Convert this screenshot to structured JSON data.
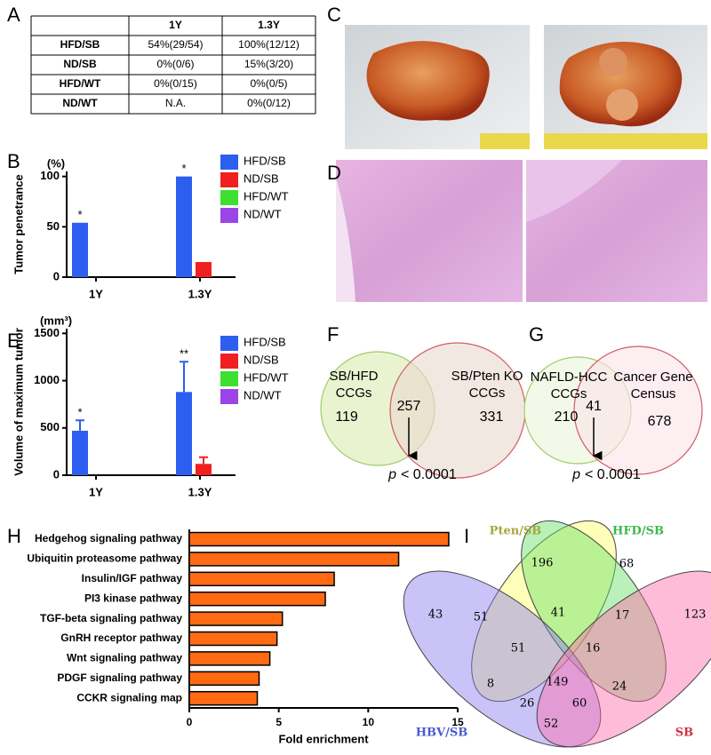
{
  "panel_labels": [
    "A",
    "B",
    "C",
    "D",
    "E",
    "F",
    "G",
    "H",
    "I"
  ],
  "table": {
    "header": [
      "1Y",
      "1.3Y"
    ],
    "rows": [
      [
        "HFD/SB",
        "54%(29/54)",
        "100%(12/12)"
      ],
      [
        "ND/SB",
        "0%(0/6)",
        "15%(3/20)"
      ],
      [
        "HFD/WT",
        "0%(0/15)",
        "0%(0/5)"
      ],
      [
        "ND/WT",
        "N.A.",
        "0%(0/12)"
      ]
    ]
  },
  "chart_data": [
    {
      "type": "bar",
      "ylabel": "Tumor penetrance",
      "yunit": "(%)",
      "categories": [
        "1Y",
        "1.3Y"
      ],
      "series": [
        {
          "name": "HFD/SB",
          "color": "#2c5ef0",
          "values": [
            54,
            100
          ],
          "annotations": [
            "*",
            "*"
          ]
        },
        {
          "name": "ND/SB",
          "color": "#f02020",
          "values": [
            0,
            15
          ]
        },
        {
          "name": "HFD/WT",
          "color": "#3de02e",
          "values": [
            0,
            0
          ]
        },
        {
          "name": "ND/WT",
          "color": "#9b45e8",
          "values": [
            0,
            0
          ]
        }
      ],
      "ylim": [
        0,
        105
      ],
      "yticks": [
        0,
        50,
        100
      ]
    },
    {
      "type": "bar",
      "ylabel": "Volume of maximum tumor",
      "yunit": "(mm³)",
      "categories": [
        "1Y",
        "1.3Y"
      ],
      "series": [
        {
          "name": "HFD/SB",
          "color": "#2c5ef0",
          "values": [
            470,
            880
          ],
          "errors": [
            110,
            320
          ],
          "annotations": [
            "*",
            "**"
          ]
        },
        {
          "name": "ND/SB",
          "color": "#f02020",
          "values": [
            0,
            120
          ],
          "errors": [
            0,
            70
          ]
        },
        {
          "name": "HFD/WT",
          "color": "#3de02e",
          "values": [
            0,
            0
          ]
        },
        {
          "name": "ND/WT",
          "color": "#9b45e8",
          "values": [
            0,
            0
          ]
        }
      ],
      "ylim": [
        0,
        1550
      ],
      "yticks": [
        0,
        500,
        1000,
        1500
      ]
    },
    {
      "type": "hbar",
      "xlabel": "Fold enrichment",
      "color": "#ff6a13",
      "categories": [
        "Hedgehog signaling pathway",
        "Ubiquitin proteasome pathway",
        "Insulin/IGF pathway",
        "PI3 kinase pathway",
        "TGF-beta signaling pathway",
        "GnRH receptor pathway",
        "Wnt signaling pathway",
        "PDGF signaling pathway",
        "CCKR signaling map"
      ],
      "values": [
        14.5,
        11.7,
        8.1,
        7.6,
        5.2,
        4.9,
        4.5,
        3.9,
        3.8
      ],
      "xlim": [
        0,
        15
      ],
      "xticks": [
        0,
        5,
        10,
        15
      ]
    }
  ],
  "venn_f": {
    "left_label": [
      "SB/HFD",
      "CCGs"
    ],
    "right_label": [
      "SB/Pten KO",
      "CCGs"
    ],
    "counts": [
      119,
      257,
      331
    ],
    "p_symbol": "p",
    "p_text": "< 0.0001"
  },
  "venn_g": {
    "left_label": [
      "NAFLD-HCC",
      "CCGs"
    ],
    "right_label": [
      "Cancer Gene",
      "Census"
    ],
    "counts": [
      210,
      41,
      678
    ],
    "p_symbol": "p",
    "p_text": "< 0.0001"
  },
  "venn_i": {
    "sets": [
      "Pten/SB",
      "HFD/SB",
      "HBV/SB",
      "SB"
    ],
    "regions": [
      196,
      68,
      43,
      51,
      41,
      17,
      123,
      51,
      16,
      8,
      149,
      24,
      26,
      60,
      52
    ]
  }
}
